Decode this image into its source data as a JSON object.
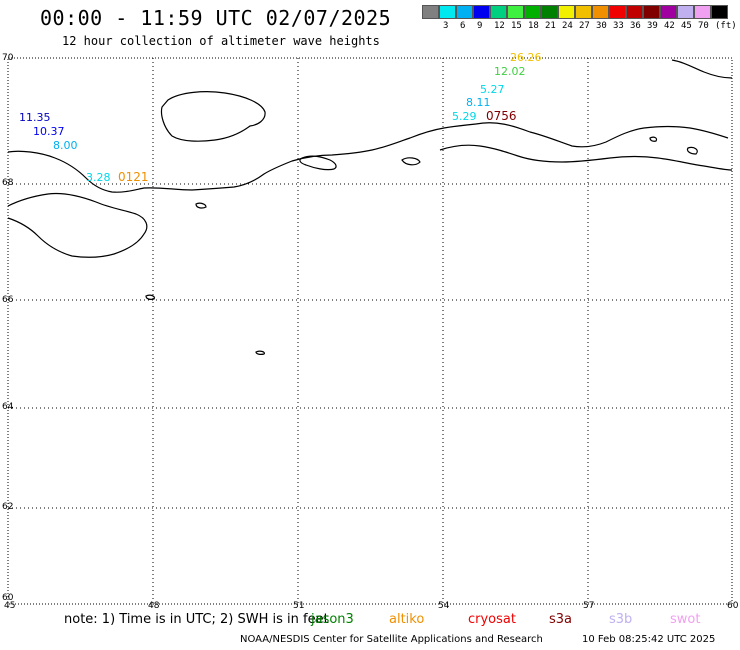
{
  "header": {
    "title": "00:00 - 11:59 UTC 02/07/2025",
    "subtitle": "12 hour collection of altimeter wave heights"
  },
  "legend": {
    "unit": "(ft)",
    "swatches": [
      {
        "color": "#808080",
        "label": ""
      },
      {
        "color": "#00e8f0",
        "label": "3"
      },
      {
        "color": "#00b0f0",
        "label": "6"
      },
      {
        "color": "#0000f0",
        "label": "9"
      },
      {
        "color": "#00d080",
        "label": "12"
      },
      {
        "color": "#40f040",
        "label": "15"
      },
      {
        "color": "#00b000",
        "label": "18"
      },
      {
        "color": "#008000",
        "label": "21"
      },
      {
        "color": "#f0f000",
        "label": "24"
      },
      {
        "color": "#f0c000",
        "label": "27"
      },
      {
        "color": "#f09000",
        "label": "30"
      },
      {
        "color": "#f00000",
        "label": "33"
      },
      {
        "color": "#c00000",
        "label": "36"
      },
      {
        "color": "#800000",
        "label": "39"
      },
      {
        "color": "#a000a0",
        "label": "42"
      },
      {
        "color": "#c0b0f0",
        "label": "45"
      },
      {
        "color": "#f0a0f0",
        "label": "70"
      },
      {
        "color": "#000000",
        "label": ""
      }
    ]
  },
  "map": {
    "lat_labels": [
      "70",
      "68",
      "66",
      "64",
      "62",
      "60"
    ],
    "lon_labels": [
      "45",
      "48",
      "51",
      "54",
      "57",
      "60"
    ]
  },
  "observations": [
    {
      "value": "11.35",
      "color": "#0000c0"
    },
    {
      "value": "10.37",
      "color": "#0000f0"
    },
    {
      "value": "8.00",
      "color": "#00b0f0"
    },
    {
      "value": "3.28",
      "color": "#00d8e8"
    },
    {
      "value": "26.26",
      "color": "#f0c000"
    },
    {
      "value": "12.02",
      "color": "#40d040"
    },
    {
      "value": "5.27",
      "color": "#00d8e8"
    },
    {
      "value": "8.11",
      "color": "#00b0f0"
    },
    {
      "value": "5.29",
      "color": "#00d8e8"
    }
  ],
  "pass_times": [
    {
      "value": "0121",
      "color": "#f09000"
    },
    {
      "value": "0756",
      "color": "#800000"
    }
  ],
  "footer": {
    "note": "note: 1) Time is in UTC; 2) SWH is in feet",
    "satellites": [
      {
        "name": "jason3",
        "color": "#008000"
      },
      {
        "name": "altiko",
        "color": "#f09000"
      },
      {
        "name": "cryosat",
        "color": "#f00000"
      },
      {
        "name": "s3a",
        "color": "#800000"
      },
      {
        "name": "s3b",
        "color": "#c0b0f0"
      },
      {
        "name": "swot",
        "color": "#f0a0f0"
      }
    ],
    "credit": "NOAA/NESDIS Center for Satellite Applications and Research",
    "timestamp": "10 Feb 08:25:42 UTC 2025"
  }
}
